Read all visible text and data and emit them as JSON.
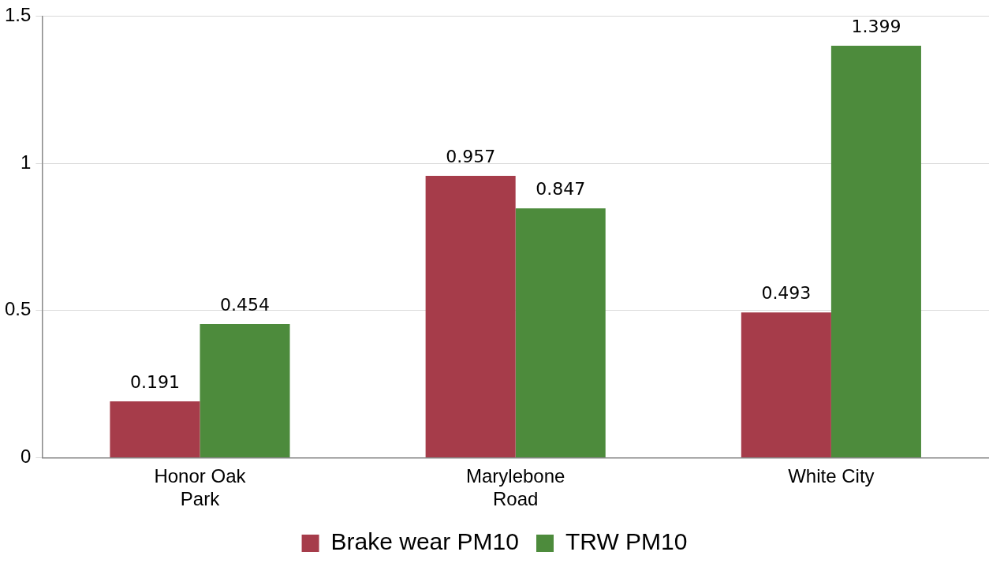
{
  "chart_data": {
    "type": "bar",
    "categories": [
      "Honor Oak Park",
      "Marylebone Road",
      "White City"
    ],
    "series": [
      {
        "name": "Brake wear PM10",
        "color": "#a63c4a",
        "values": [
          0.191,
          0.957,
          0.493
        ]
      },
      {
        "name": "TRW PM10",
        "color": "#4d8b3c",
        "values": [
          0.454,
          0.847,
          1.399
        ]
      }
    ],
    "ylim": [
      0,
      1.5
    ],
    "yticks": [
      0,
      0.5,
      1,
      1.5
    ],
    "grid": "y",
    "legend": "bottom",
    "data_labels": true
  }
}
